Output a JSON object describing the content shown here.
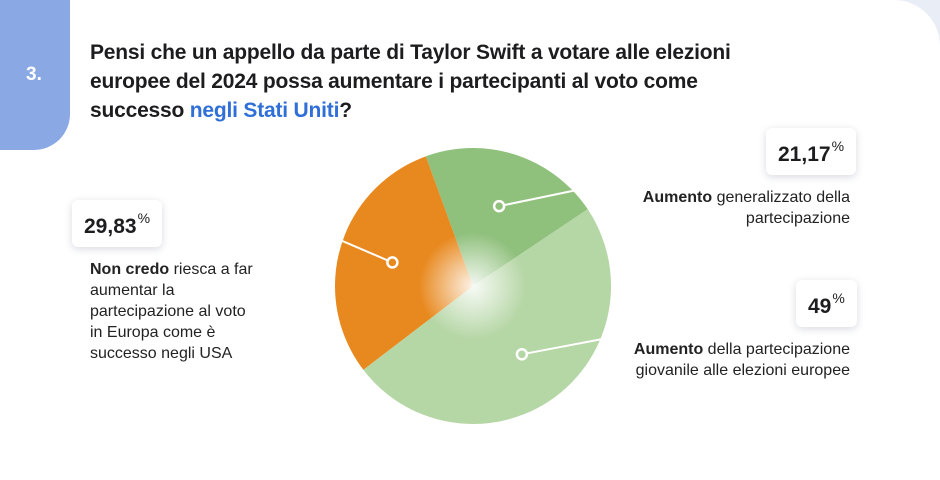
{
  "question": {
    "number": "3.",
    "title_main": "Pensi che un appello da parte di Taylor Swift a votare alle elezioni europee del 2024 possa aumentare i partecipanti al voto come successo ",
    "title_highlight": "negli Stati Uniti",
    "title_end": "?"
  },
  "chart_data": {
    "type": "pie",
    "unit": "%",
    "slices": [
      {
        "value": 21.17,
        "value_label": "21,17",
        "label_bold": "Aumento",
        "label_rest": " generalizzato della partecipazione",
        "color": "#8fc07c"
      },
      {
        "value": 49,
        "value_label": "49",
        "label_bold": "Aumento",
        "label_rest": " della partecipazione giovanile alle elezioni europee",
        "color": "#b5d6a5"
      },
      {
        "value": 29.83,
        "value_label": "29,83",
        "label_bold": "Non credo",
        "label_rest": " riesca a far aumentar la partecipazione al voto in Europa come è successo negli USA",
        "color": "#e8891f"
      }
    ]
  }
}
